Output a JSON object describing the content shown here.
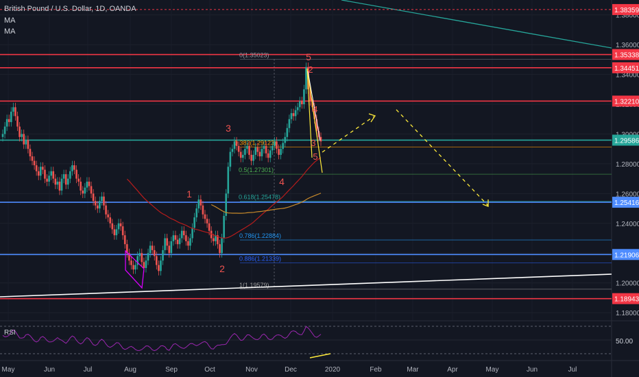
{
  "header": {
    "title": "British Pound / U.S. Dollar, 1D, OANDA",
    "indicator1": "MA",
    "indicator2": "MA"
  },
  "rsi": {
    "label": "RSI",
    "level": "50.00"
  },
  "chart_data": {
    "type": "candlestick",
    "symbol": "GBPUSD",
    "y_range": [
      1.175,
      1.39
    ],
    "y_ticks": [
      "1.38000",
      "1.36000",
      "1.34000",
      "1.32000",
      "1.30000",
      "1.28000",
      "1.26000",
      "1.24000",
      "1.22000",
      "1.20000",
      "1.18000"
    ],
    "x_ticks": [
      "May",
      "Jun",
      "Jul",
      "Aug",
      "Sep",
      "Oct",
      "Nov",
      "Dec",
      "2020",
      "Feb",
      "Mar",
      "Apr",
      "May",
      "Jun",
      "Jul"
    ],
    "price_levels": [
      {
        "label": "1.38359",
        "value": 1.38359,
        "color": "#f23645",
        "style": "dashed"
      },
      {
        "label": "1.35338",
        "value": 1.35338,
        "color": "#f23645",
        "style": "solid"
      },
      {
        "label": "1.34451",
        "value": 1.34451,
        "color": "#f23645",
        "style": "solid"
      },
      {
        "label": "1.32210",
        "value": 1.3221,
        "color": "#f23645",
        "style": "solid"
      },
      {
        "label": "1.29586",
        "value": 1.29586,
        "color": "#26a69a",
        "style": "solid"
      },
      {
        "label": "1.25416",
        "value": 1.25416,
        "color": "#4e8cff",
        "style": "solid"
      },
      {
        "label": "1.21906",
        "value": 1.21906,
        "color": "#4e8cff",
        "style": "solid"
      },
      {
        "label": "1.18943",
        "value": 1.18943,
        "color": "#f23645",
        "style": "solid"
      }
    ],
    "fib_levels": [
      {
        "label": "0(1.35023)",
        "value": 1.35023
      },
      {
        "label": "0.382(1.29123)",
        "value": 1.29123
      },
      {
        "label": "0.5(1.27301)",
        "value": 1.27301
      },
      {
        "label": "0.618(1.25478)",
        "value": 1.25478
      },
      {
        "label": "0.786(1.22884)",
        "value": 1.22884
      },
      {
        "label": "0.886(1.21339)",
        "value": 1.21339
      },
      {
        "label": "1(1.19579)",
        "value": 1.19579
      }
    ],
    "wave_labels": [
      "1",
      "2",
      "3",
      "4",
      "5",
      "2",
      "4",
      "3",
      "5"
    ],
    "close_series": [
      1.3,
      1.305,
      1.31,
      1.308,
      1.315,
      1.318,
      1.312,
      1.305,
      1.298,
      1.3,
      1.293,
      1.296,
      1.29,
      1.285,
      1.282,
      1.279,
      1.275,
      1.272,
      1.278,
      1.276,
      1.27,
      1.268,
      1.272,
      1.275,
      1.27,
      1.266,
      1.268,
      1.262,
      1.27,
      1.273,
      1.266,
      1.27,
      1.275,
      1.279,
      1.276,
      1.27,
      1.268,
      1.262,
      1.26,
      1.264,
      1.268,
      1.265,
      1.26,
      1.255,
      1.252,
      1.25,
      1.255,
      1.258,
      1.252,
      1.246,
      1.244,
      1.24,
      1.236,
      1.232,
      1.236,
      1.24,
      1.238,
      1.232,
      1.226,
      1.22,
      1.215,
      1.212,
      1.209,
      1.212,
      1.218,
      1.22,
      1.214,
      1.21,
      1.215,
      1.22,
      1.225,
      1.222,
      1.218,
      1.212,
      1.208,
      1.215,
      1.222,
      1.23,
      1.225,
      1.22,
      1.228,
      1.232,
      1.229,
      1.226,
      1.23,
      1.235,
      1.232,
      1.228,
      1.225,
      1.23,
      1.237,
      1.244,
      1.25,
      1.256,
      1.252,
      1.246,
      1.243,
      1.24,
      1.235,
      1.23,
      1.228,
      1.232,
      1.226,
      1.22,
      1.23,
      1.245,
      1.26,
      1.278,
      1.288,
      1.29,
      1.295,
      1.292,
      1.288,
      1.284,
      1.286,
      1.29,
      1.292,
      1.286,
      1.282,
      1.286,
      1.291,
      1.288,
      1.285,
      1.29,
      1.292,
      1.287,
      1.284,
      1.289,
      1.292,
      1.295,
      1.29,
      1.286,
      1.29,
      1.294,
      1.298,
      1.304,
      1.31,
      1.314,
      1.312,
      1.316,
      1.318,
      1.322,
      1.32,
      1.33,
      1.345,
      1.33,
      1.322,
      1.318,
      1.31,
      1.302,
      1.298,
      1.295
    ],
    "annotations": {
      "projection": "dashed yellow arrow path: up to ~1.322 early Jan, down to ~1.255 late Apr",
      "trendlines": [
        "white rising support",
        "green descending resistance"
      ]
    }
  }
}
